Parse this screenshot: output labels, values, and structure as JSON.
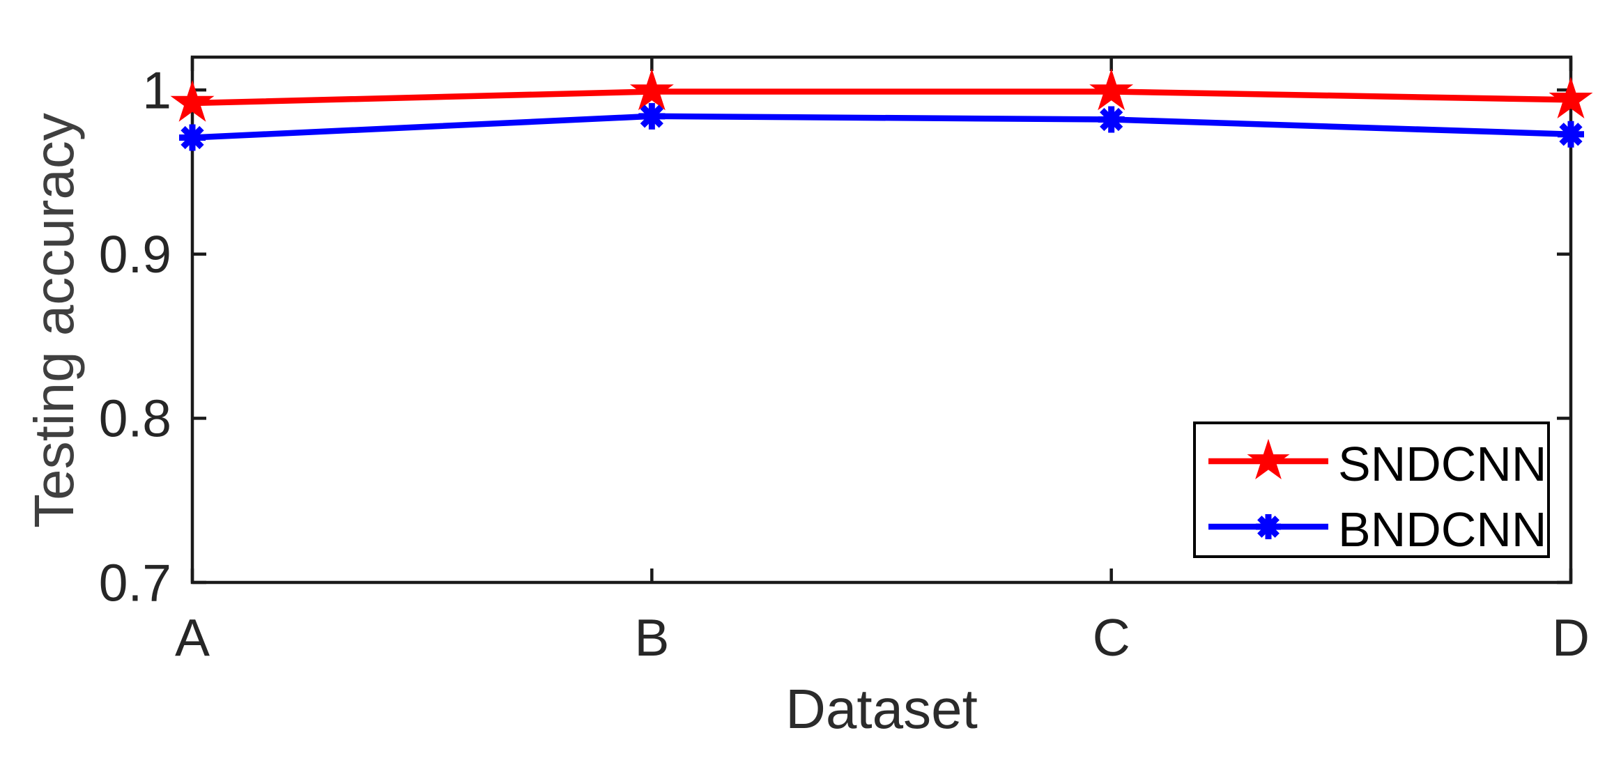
{
  "chart_data": {
    "type": "line",
    "title": "",
    "xlabel": "Dataset",
    "ylabel": "Testing accuracy",
    "categories": [
      "A",
      "B",
      "C",
      "D"
    ],
    "series": [
      {
        "name": "SNDCNN",
        "color": "#FF0000",
        "marker": "pentagram",
        "values": [
          0.992,
          0.999,
          0.999,
          0.994
        ]
      },
      {
        "name": "BNDCNN",
        "color": "#0000FF",
        "marker": "asterisk",
        "values": [
          0.971,
          0.984,
          0.982,
          0.973
        ]
      }
    ],
    "ylim": [
      0.7,
      1.02
    ],
    "yticks": [
      1,
      0.9,
      0.8,
      0.7
    ],
    "ytick_labels": [
      "1",
      "0.9",
      "0.8",
      "0.7"
    ],
    "grid": false,
    "legend_position": "bottom-right",
    "axis_color": "#1a1a1a"
  }
}
